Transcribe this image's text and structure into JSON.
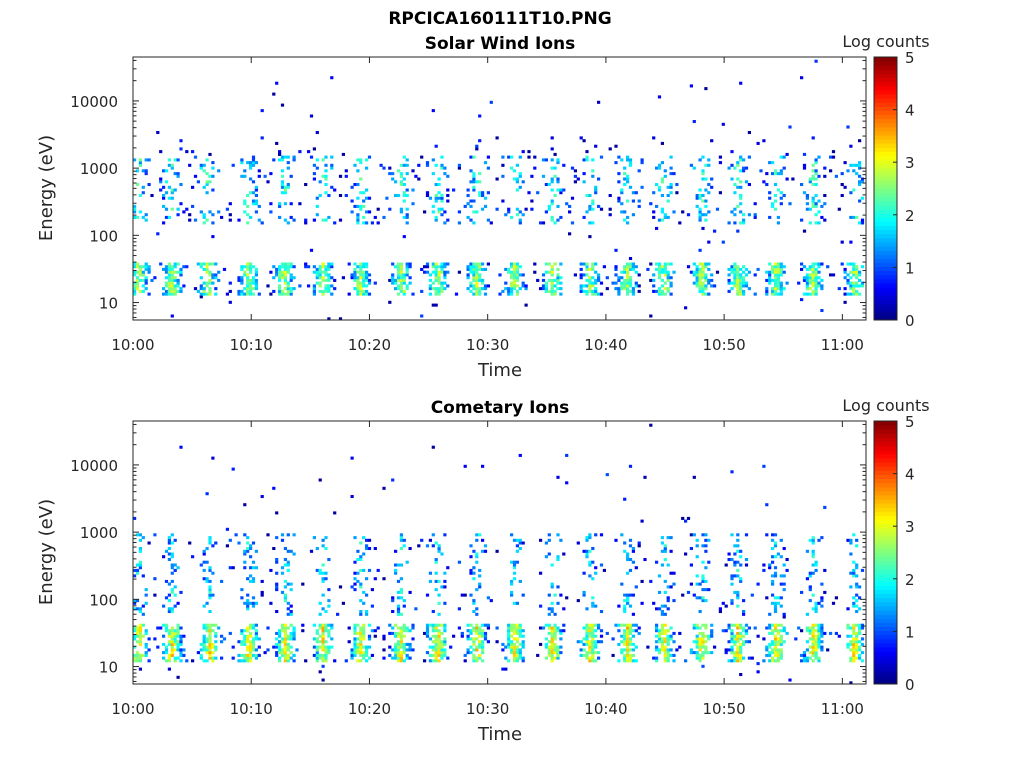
{
  "figure_title": "RPCICA160111T10.PNG",
  "chart_data": [
    {
      "type": "heatmap",
      "title": "Solar Wind Ions",
      "xlabel": "Time",
      "ylabel": "Energy (eV)",
      "y_scale": "log",
      "ylim": [
        5.5,
        45000
      ],
      "xlim": [
        "10:00",
        "11:02"
      ],
      "x_ticks": [
        "10:00",
        "10:10",
        "10:20",
        "10:30",
        "10:40",
        "10:50",
        "11:00"
      ],
      "y_ticks": [
        "10",
        "100",
        "1000",
        "10000"
      ],
      "colorbar": {
        "label": "Log counts",
        "range": [
          0,
          5
        ],
        "ticks": [
          "0",
          "1",
          "2",
          "3",
          "4",
          "5"
        ],
        "colormap": "jet"
      },
      "bursts_minutes": [
        0.5,
        3.3,
        6.3,
        9.8,
        12.8,
        16.1,
        19.3,
        22.7,
        25.8,
        29.1,
        32.3,
        35.5,
        38.7,
        41.8,
        44.9,
        48.1,
        51.2,
        54.4,
        57.5,
        61.1
      ],
      "bands_eV": {
        "low_band": [
          13,
          40
        ],
        "mid_band": [
          150,
          1500
        ],
        "peak_log_counts": 2.6
      }
    },
    {
      "type": "heatmap",
      "title": "Cometary Ions",
      "xlabel": "Time",
      "ylabel": "Energy (eV)",
      "y_scale": "log",
      "ylim": [
        5.5,
        45000
      ],
      "xlim": [
        "10:00",
        "11:02"
      ],
      "x_ticks": [
        "10:00",
        "10:10",
        "10:20",
        "10:30",
        "10:40",
        "10:50",
        "11:00"
      ],
      "y_ticks": [
        "10",
        "100",
        "1000",
        "10000"
      ],
      "colorbar": {
        "label": "Log counts",
        "range": [
          0,
          5
        ],
        "ticks": [
          "0",
          "1",
          "2",
          "3",
          "4",
          "5"
        ],
        "colormap": "jet"
      },
      "bursts_minutes": [
        0.5,
        3.3,
        6.5,
        9.8,
        12.9,
        16.1,
        19.3,
        22.6,
        25.8,
        29.1,
        32.3,
        35.5,
        38.7,
        41.8,
        44.9,
        48.1,
        51.2,
        54.4,
        57.6,
        61.0
      ],
      "bands_eV": {
        "low_band": [
          12,
          45
        ],
        "upper_tail": [
          60,
          1000
        ],
        "peak_log_counts": 3.1
      }
    }
  ]
}
